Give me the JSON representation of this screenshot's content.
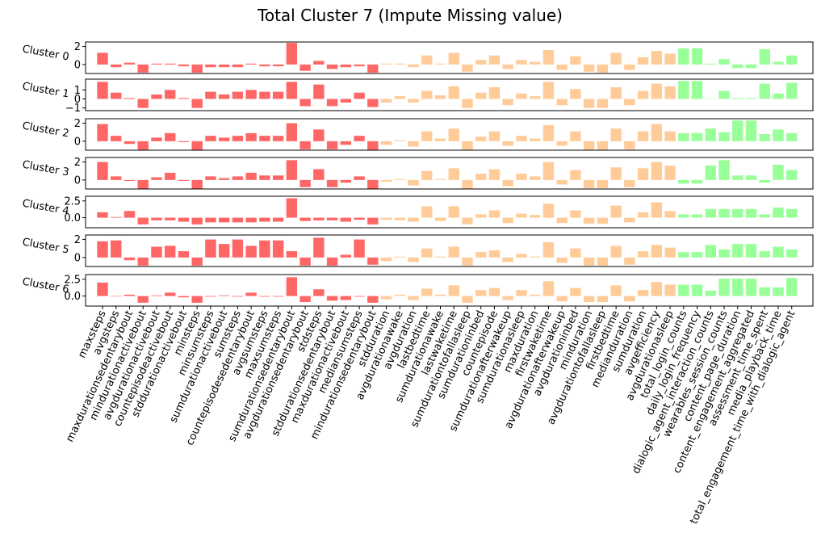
{
  "chart_data": {
    "type": "bar",
    "title": "Total Cluster 7 (Impute Missing value)",
    "categories": [
      "maxsteps",
      "avgsteps",
      "maxdurationsedentarybout",
      "mindurationactivebout",
      "avgdurationactivebout",
      "countepisodeactivebout",
      "stddurationactivebout",
      "minsteps",
      "minsumsteps",
      "sumdurationactivebout",
      "sumsteps",
      "countepisodesedentarybout",
      "avgsumsteps",
      "maxsumsteps",
      "sumdurationsedentarybout",
      "avgdurationsedentarybout",
      "stdsteps",
      "stddurationsedentarybout",
      "maxdurationactivebout",
      "mediansumsteps",
      "mindurationsedentarybout",
      "stdduration",
      "avgdurationawake",
      "avgduration",
      "lastbedtime",
      "sumdurationawake",
      "lastwaketime",
      "sumdurationtofallasleep",
      "sumdurationinbed",
      "countepisode",
      "sumdurationafterwakeup",
      "sumdurationasleep",
      "maxduration",
      "firstwaketime",
      "avgdurationafterwakeup",
      "avgdurationinbed",
      "minduration",
      "avgdurationtofallasleep",
      "firstbedtime",
      "medianduration",
      "sumduration",
      "avgefficiency",
      "avgdurationasleep",
      "total_login_counts",
      "daily_login_frequency",
      "dialogic_agent_interaction_counts",
      "wearables_session_counts",
      "content_page_duration",
      "content_engagement_aggregated",
      "assessment_time_spent",
      "media_playback_time",
      "total_engagement_time_with_dialogic_agent"
    ],
    "category_groups": [
      "red",
      "red",
      "red",
      "red",
      "red",
      "red",
      "red",
      "red",
      "red",
      "red",
      "red",
      "red",
      "red",
      "red",
      "red",
      "red",
      "red",
      "red",
      "red",
      "red",
      "red",
      "orange",
      "orange",
      "orange",
      "orange",
      "orange",
      "orange",
      "orange",
      "orange",
      "orange",
      "orange",
      "orange",
      "orange",
      "orange",
      "orange",
      "orange",
      "orange",
      "orange",
      "orange",
      "orange",
      "orange",
      "orange",
      "orange",
      "green",
      "green",
      "green",
      "green",
      "green",
      "green",
      "green",
      "green",
      "green"
    ],
    "group_colors": {
      "red": "#ff6666",
      "orange": "#ffcc99",
      "green": "#99ff99"
    },
    "subplots": [
      {
        "label": "Cluster 0",
        "yticks": [
          "2",
          "0"
        ],
        "tick_values": [
          2,
          0
        ],
        "ylim": [
          -1,
          2.5
        ],
        "values": [
          1.3,
          -0.3,
          0.2,
          -0.9,
          0.1,
          0.1,
          -0.2,
          -0.9,
          -0.3,
          -0.3,
          -0.3,
          0.1,
          -0.2,
          -0.2,
          2.4,
          -0.7,
          0.4,
          -0.5,
          -0.3,
          -0.2,
          -0.9,
          0.1,
          0.1,
          -0.3,
          1.0,
          0.1,
          1.3,
          -0.8,
          0.5,
          1.0,
          -0.5,
          0.5,
          0.3,
          1.6,
          -0.6,
          0.9,
          -0.8,
          -0.9,
          1.3,
          -0.6,
          0.8,
          1.5,
          1.2,
          1.8,
          1.8,
          0.1,
          0.6,
          -0.4,
          -0.4,
          1.7,
          0.3,
          1.0
        ]
      },
      {
        "label": "Cluster 1",
        "yticks": [
          "1",
          "0",
          "−1"
        ],
        "tick_values": [
          1,
          0,
          -1
        ],
        "ylim": [
          -1.3,
          2.2
        ],
        "values": [
          1.9,
          0.7,
          0.1,
          -1.0,
          0.5,
          1.0,
          0.1,
          -1.0,
          0.8,
          0.5,
          0.8,
          1.0,
          0.8,
          0.8,
          1.9,
          -0.8,
          1.6,
          -0.8,
          -0.4,
          0.7,
          -0.9,
          -0.4,
          0.3,
          -0.4,
          0.9,
          0.4,
          1.4,
          -1.0,
          0.7,
          1.3,
          -0.7,
          0.6,
          0.3,
          1.9,
          -0.7,
          1.1,
          -1.0,
          -1.0,
          1.3,
          -0.7,
          0.9,
          1.7,
          1.4,
          2.0,
          2.0,
          0.0,
          0.9,
          0.1,
          0.1,
          1.7,
          0.6,
          1.8
        ]
      },
      {
        "label": "Cluster 2",
        "yticks": [
          "2",
          "0"
        ],
        "tick_values": [
          2,
          0
        ],
        "ylim": [
          -1,
          2.5
        ],
        "values": [
          1.9,
          0.6,
          -0.3,
          -1.0,
          0.4,
          0.9,
          -0.1,
          -1.0,
          0.6,
          0.4,
          0.6,
          0.9,
          0.6,
          0.6,
          2.0,
          -0.9,
          1.3,
          -0.9,
          -0.4,
          0.6,
          -1.0,
          -0.4,
          0.1,
          -0.6,
          1.1,
          0.3,
          1.4,
          -1.0,
          0.5,
          1.1,
          -0.5,
          0.6,
          0.3,
          1.8,
          -0.5,
          1.1,
          -1.0,
          -1.0,
          1.4,
          -0.9,
          1.1,
          1.9,
          1.1,
          0.9,
          0.9,
          1.4,
          1.0,
          2.3,
          2.3,
          0.8,
          1.3,
          0.9
        ]
      },
      {
        "label": "Cluster 3",
        "yticks": [
          "2",
          "0"
        ],
        "tick_values": [
          2,
          0
        ],
        "ylim": [
          -1,
          2.5
        ],
        "values": [
          2.0,
          0.4,
          -0.1,
          -1.0,
          0.3,
          0.8,
          -0.1,
          -1.0,
          0.4,
          0.2,
          0.4,
          0.8,
          0.5,
          0.5,
          2.2,
          -0.8,
          1.2,
          -0.8,
          -0.3,
          0.4,
          -1.0,
          -0.2,
          0.1,
          -0.6,
          1.0,
          0.1,
          1.3,
          -1.0,
          0.7,
          1.2,
          -0.7,
          0.7,
          0.4,
          2.0,
          -0.5,
          1.1,
          -0.9,
          -0.9,
          1.4,
          -0.8,
          1.3,
          2.0,
          1.6,
          -0.4,
          -0.4,
          1.6,
          2.2,
          0.5,
          0.5,
          -0.3,
          1.7,
          1.1
        ]
      },
      {
        "label": "Cluster 4",
        "yticks": [
          "2.5",
          "0.0"
        ],
        "tick_values": [
          2.5,
          0.0
        ],
        "ylim": [
          -1.5,
          3.2
        ],
        "values": [
          0.8,
          0.1,
          1.0,
          -1.0,
          -0.4,
          -0.4,
          -0.6,
          -1.0,
          -0.7,
          -0.7,
          -0.7,
          -0.7,
          -0.6,
          -0.6,
          2.9,
          -0.5,
          -0.4,
          -0.4,
          -0.6,
          -0.3,
          -1.0,
          -0.3,
          -0.4,
          -0.6,
          1.7,
          -0.5,
          1.7,
          -1.0,
          0.5,
          1.1,
          -0.8,
          0.6,
          0.4,
          2.1,
          -0.8,
          1.1,
          -0.9,
          -0.9,
          1.8,
          -0.7,
          0.8,
          2.3,
          1.0,
          0.5,
          0.5,
          1.3,
          1.3,
          1.3,
          1.3,
          0.5,
          1.5,
          1.3
        ]
      },
      {
        "label": "Cluster 5",
        "yticks": [
          "2",
          "0"
        ],
        "tick_values": [
          2,
          0
        ],
        "ylim": [
          -1,
          2.5
        ],
        "values": [
          1.8,
          1.9,
          -0.3,
          -0.9,
          1.2,
          1.3,
          0.7,
          -0.9,
          2.0,
          1.5,
          2.0,
          1.3,
          1.9,
          1.9,
          0.7,
          -0.9,
          2.2,
          -0.9,
          0.3,
          2.0,
          -0.8,
          -0.4,
          0.1,
          -0.5,
          1.0,
          0.1,
          1.2,
          -0.9,
          0.6,
          0.8,
          -0.5,
          0.4,
          0.1,
          1.7,
          -0.6,
          1.0,
          -0.9,
          -0.9,
          1.3,
          -0.8,
          0.7,
          1.4,
          1.1,
          0.6,
          0.6,
          1.4,
          0.9,
          1.5,
          1.5,
          0.7,
          1.2,
          0.9
        ]
      },
      {
        "label": "Cluster 6",
        "yticks": [
          "2.5",
          "0.0"
        ],
        "tick_values": [
          2.5,
          0.0
        ],
        "ylim": [
          -1.5,
          3.2
        ],
        "values": [
          2.0,
          0.0,
          0.2,
          -1.0,
          0.1,
          0.5,
          -0.2,
          -1.0,
          -0.1,
          0.1,
          -0.1,
          0.5,
          -0.1,
          -0.1,
          2.8,
          -0.9,
          1.0,
          -0.7,
          -0.6,
          -0.1,
          -1.0,
          -0.5,
          0.2,
          -0.6,
          1.1,
          0.2,
          1.6,
          -1.0,
          0.9,
          1.2,
          -0.6,
          0.9,
          0.2,
          2.2,
          -0.8,
          1.2,
          -0.9,
          -0.9,
          1.6,
          -0.8,
          0.9,
          2.1,
          1.7,
          1.7,
          1.7,
          0.8,
          2.6,
          2.6,
          2.6,
          1.3,
          1.3,
          2.7
        ]
      }
    ]
  }
}
